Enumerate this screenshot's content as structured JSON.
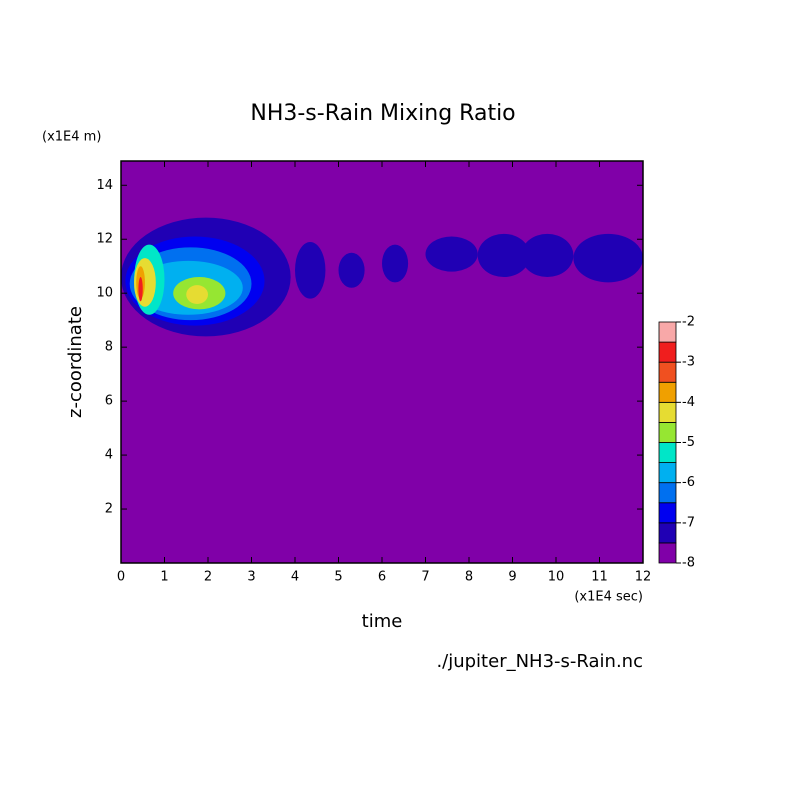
{
  "chart_data": {
    "type": "contour",
    "title": "NH3-s-Rain Mixing Ratio",
    "xlabel": "time",
    "ylabel": "z-coordinate",
    "x_unit": "(x1E4 sec)",
    "y_unit": "(x1E4 m)",
    "footnote": "./jupiter_NH3-s-Rain.nc",
    "xlim": [
      0,
      12
    ],
    "ylim": [
      0,
      14.9
    ],
    "xticks": [
      0,
      1,
      2,
      3,
      4,
      5,
      6,
      7,
      8,
      9,
      10,
      11,
      12
    ],
    "yticks": [
      2,
      4,
      6,
      8,
      10,
      12,
      14
    ],
    "levels": [
      -8,
      -7.5,
      -7,
      -6.5,
      -6,
      -5.5,
      -5,
      -4.5,
      -4,
      -3.5,
      -3,
      -2.5,
      -2
    ],
    "colorbar_ticks": [
      -8,
      -7,
      -6,
      -5,
      -4,
      -3,
      -2
    ],
    "colors": [
      "#8000a8",
      "#2000b4",
      "#0000f0",
      "#0070f0",
      "#00b0f0",
      "#00e6c8",
      "#96e632",
      "#e6dc32",
      "#f0a000",
      "#f05020",
      "#f01e1e",
      "#f8a8a8"
    ],
    "regions": [
      {
        "x": [
          0.0,
          3.9
        ],
        "z": [
          8.4,
          12.8
        ],
        "level": -7.5
      },
      {
        "x": [
          4.0,
          4.7
        ],
        "z": [
          9.8,
          11.9
        ],
        "level": -7.5
      },
      {
        "x": [
          5.0,
          5.6
        ],
        "z": [
          10.2,
          11.5
        ],
        "level": -7.5
      },
      {
        "x": [
          6.0,
          6.6
        ],
        "z": [
          10.4,
          11.8
        ],
        "level": -7.5
      },
      {
        "x": [
          7.0,
          8.2
        ],
        "z": [
          10.8,
          12.1
        ],
        "level": -7.5
      },
      {
        "x": [
          8.2,
          9.4
        ],
        "z": [
          10.6,
          12.2
        ],
        "level": -7.5
      },
      {
        "x": [
          9.2,
          10.4
        ],
        "z": [
          10.6,
          12.2
        ],
        "level": -7.5
      },
      {
        "x": [
          10.4,
          12.0
        ],
        "z": [
          10.4,
          12.2
        ],
        "level": -7.5
      },
      {
        "x": [
          0.1,
          3.3
        ],
        "z": [
          8.8,
          12.1
        ],
        "level": -7
      },
      {
        "x": [
          0.2,
          3.0
        ],
        "z": [
          9.0,
          11.7
        ],
        "level": -6.5
      },
      {
        "x": [
          0.3,
          2.8
        ],
        "z": [
          9.2,
          11.2
        ],
        "level": -6
      },
      {
        "x": [
          0.3,
          1.0
        ],
        "z": [
          9.2,
          11.8
        ],
        "level": -5.5
      },
      {
        "x": [
          1.2,
          2.4
        ],
        "z": [
          9.4,
          10.6
        ],
        "level": -5
      },
      {
        "x": [
          0.3,
          0.8
        ],
        "z": [
          9.5,
          11.3
        ],
        "level": -4.5
      },
      {
        "x": [
          1.5,
          2.0
        ],
        "z": [
          9.6,
          10.3
        ],
        "level": -4.5
      },
      {
        "x": [
          0.35,
          0.55
        ],
        "z": [
          9.8,
          11.0
        ],
        "level": -4
      },
      {
        "x": [
          0.4,
          0.5
        ],
        "z": [
          9.7,
          10.6
        ],
        "level": -3
      }
    ]
  }
}
